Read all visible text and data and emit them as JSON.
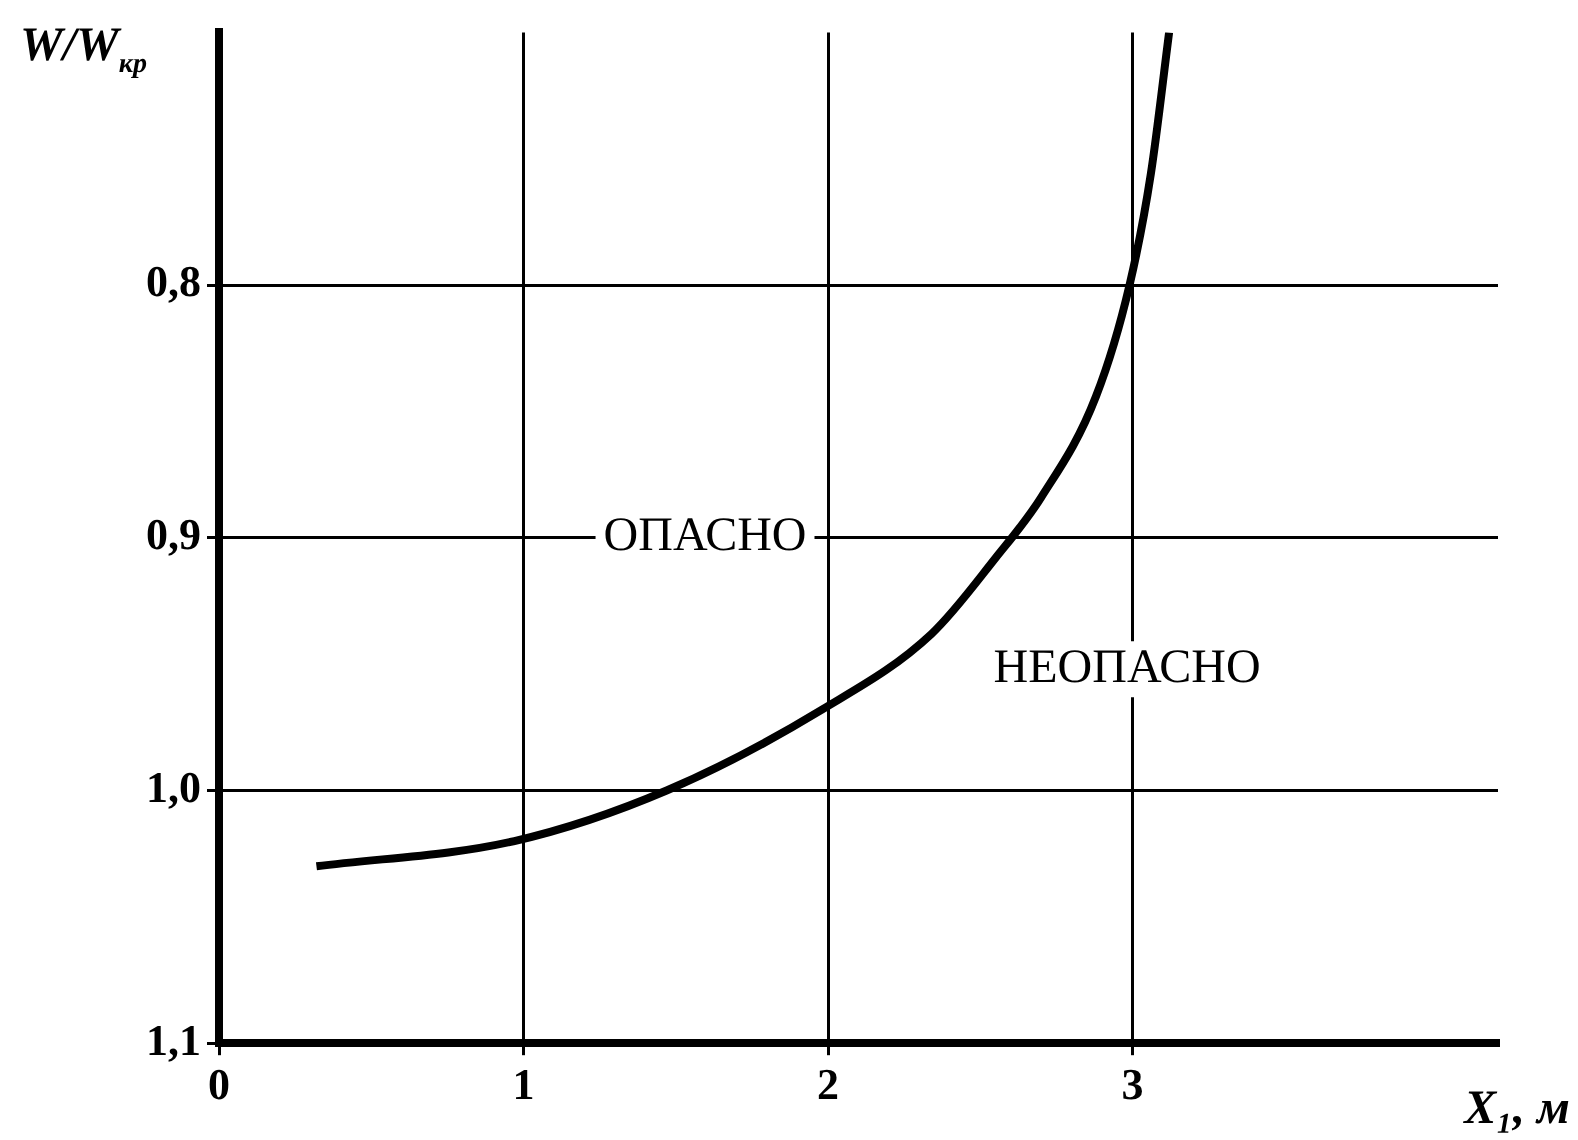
{
  "chart_data": {
    "type": "line",
    "xlabel": "X₁, м",
    "ylabel": "W/W$_{кр}$",
    "x": [
      0.32,
      0.97,
      1.47,
      1.98,
      2.34,
      2.55,
      2.7,
      2.88,
      2.99,
      3.06,
      3.12
    ],
    "series": [
      {
        "color": "#000000",
        "values": [
          1.03,
          1.02,
          1.0,
          0.968,
          0.938,
          0.908,
          0.884,
          0.844,
          0.8,
          0.756,
          0.7
        ]
      }
    ],
    "xlim": [
      0,
      4.2
    ],
    "xticks": [
      0,
      1,
      2,
      3
    ],
    "ylim": [
      1.1,
      0.7
    ],
    "yticks": [
      {
        "value": 0.8,
        "label": "0,8"
      },
      {
        "value": 0.9,
        "label": "0,9"
      },
      {
        "value": 1.0,
        "label": "1,0"
      },
      {
        "value": 1.1,
        "label": "1,1"
      }
    ],
    "grid": true,
    "legend": false,
    "marker": "none",
    "line_style": "solid",
    "annotations": [
      "ОПАСНО",
      "НЕОПАСНО"
    ]
  }
}
